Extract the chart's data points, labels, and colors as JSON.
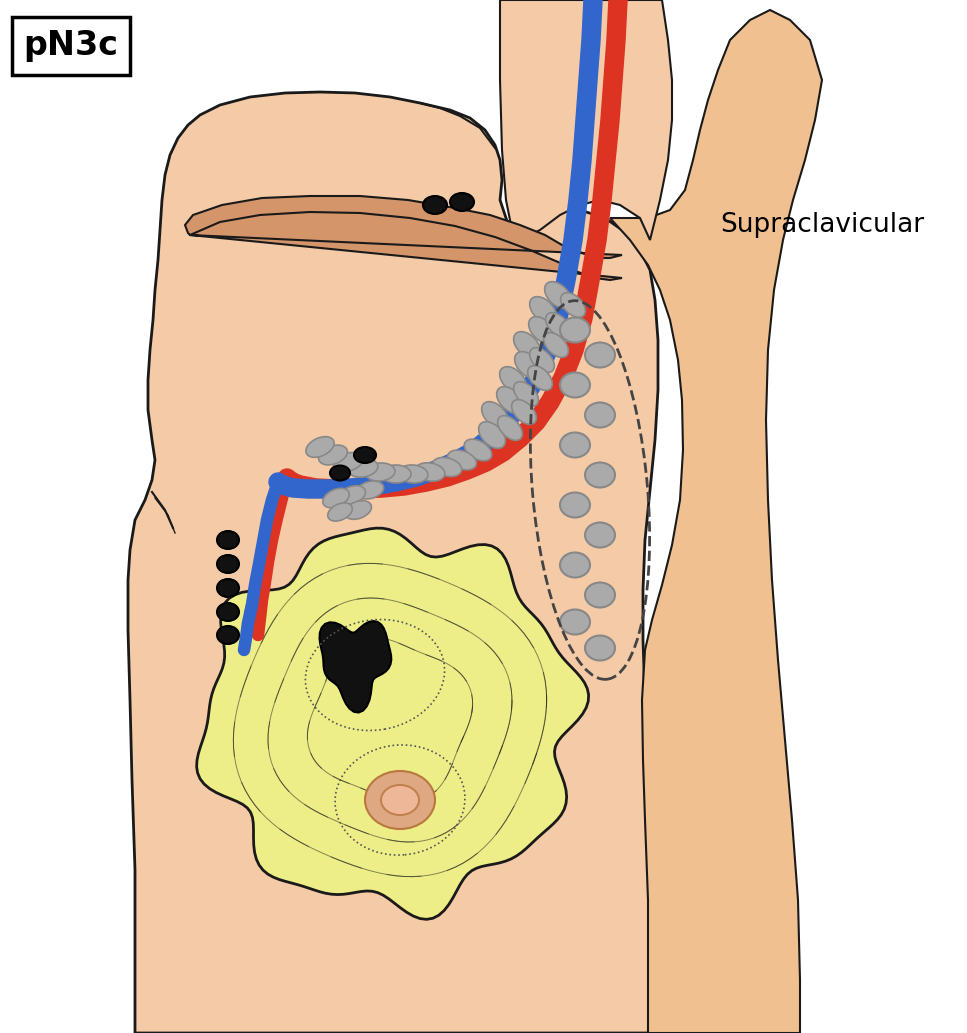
{
  "title": "pN3c",
  "label_supraclavicular": "Supraclavicular",
  "skin_color": "#F5CBA7",
  "skin_light": "#FAE0C8",
  "skin_outline": "#1a1a1a",
  "breast_yellow": "#EEEE88",
  "vessel_blue": "#3366CC",
  "vessel_red": "#DD3322",
  "node_black": "#111111",
  "node_gray": "#AAAAAA",
  "node_gray_edge": "#888888",
  "nipple_outer": "#DDA882",
  "nipple_inner": "#EEB898",
  "background": "#FFFFFF",
  "clavicle_color": "#D4956A",
  "arm_color": "#F0C090"
}
